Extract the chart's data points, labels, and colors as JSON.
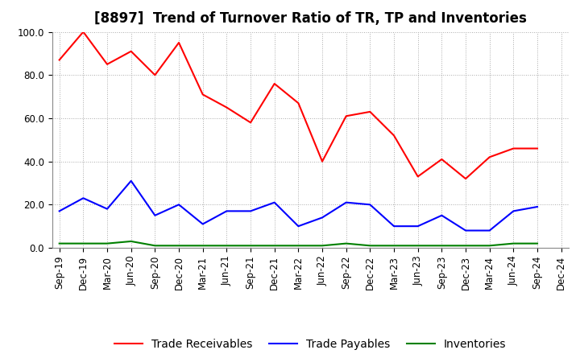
{
  "title": "[8897]  Trend of Turnover Ratio of TR, TP and Inventories",
  "x_labels": [
    "Sep-19",
    "Dec-19",
    "Mar-20",
    "Jun-20",
    "Sep-20",
    "Dec-20",
    "Mar-21",
    "Jun-21",
    "Sep-21",
    "Dec-21",
    "Mar-22",
    "Jun-22",
    "Sep-22",
    "Dec-22",
    "Mar-23",
    "Jun-23",
    "Sep-23",
    "Dec-23",
    "Mar-24",
    "Jun-24",
    "Sep-24",
    "Dec-24"
  ],
  "trade_receivables": [
    87,
    100,
    85,
    91,
    80,
    95,
    71,
    65,
    58,
    76,
    67,
    40,
    61,
    63,
    52,
    33,
    41,
    32,
    42,
    46,
    46,
    null
  ],
  "trade_payables": [
    17,
    23,
    18,
    31,
    15,
    20,
    11,
    17,
    17,
    21,
    10,
    14,
    21,
    20,
    10,
    10,
    15,
    8,
    8,
    17,
    19,
    null
  ],
  "inventories": [
    2,
    2,
    2,
    3,
    1,
    1,
    1,
    1,
    1,
    1,
    1,
    1,
    2,
    1,
    1,
    1,
    1,
    1,
    1,
    2,
    2,
    null
  ],
  "ylim": [
    0,
    100
  ],
  "yticks": [
    0.0,
    20.0,
    40.0,
    60.0,
    80.0,
    100.0
  ],
  "tr_color": "#ff0000",
  "tp_color": "#0000ff",
  "inv_color": "#008000",
  "bg_color": "#ffffff",
  "grid_color": "#aaaaaa",
  "title_fontsize": 12,
  "tick_fontsize": 8.5,
  "legend_fontsize": 10
}
